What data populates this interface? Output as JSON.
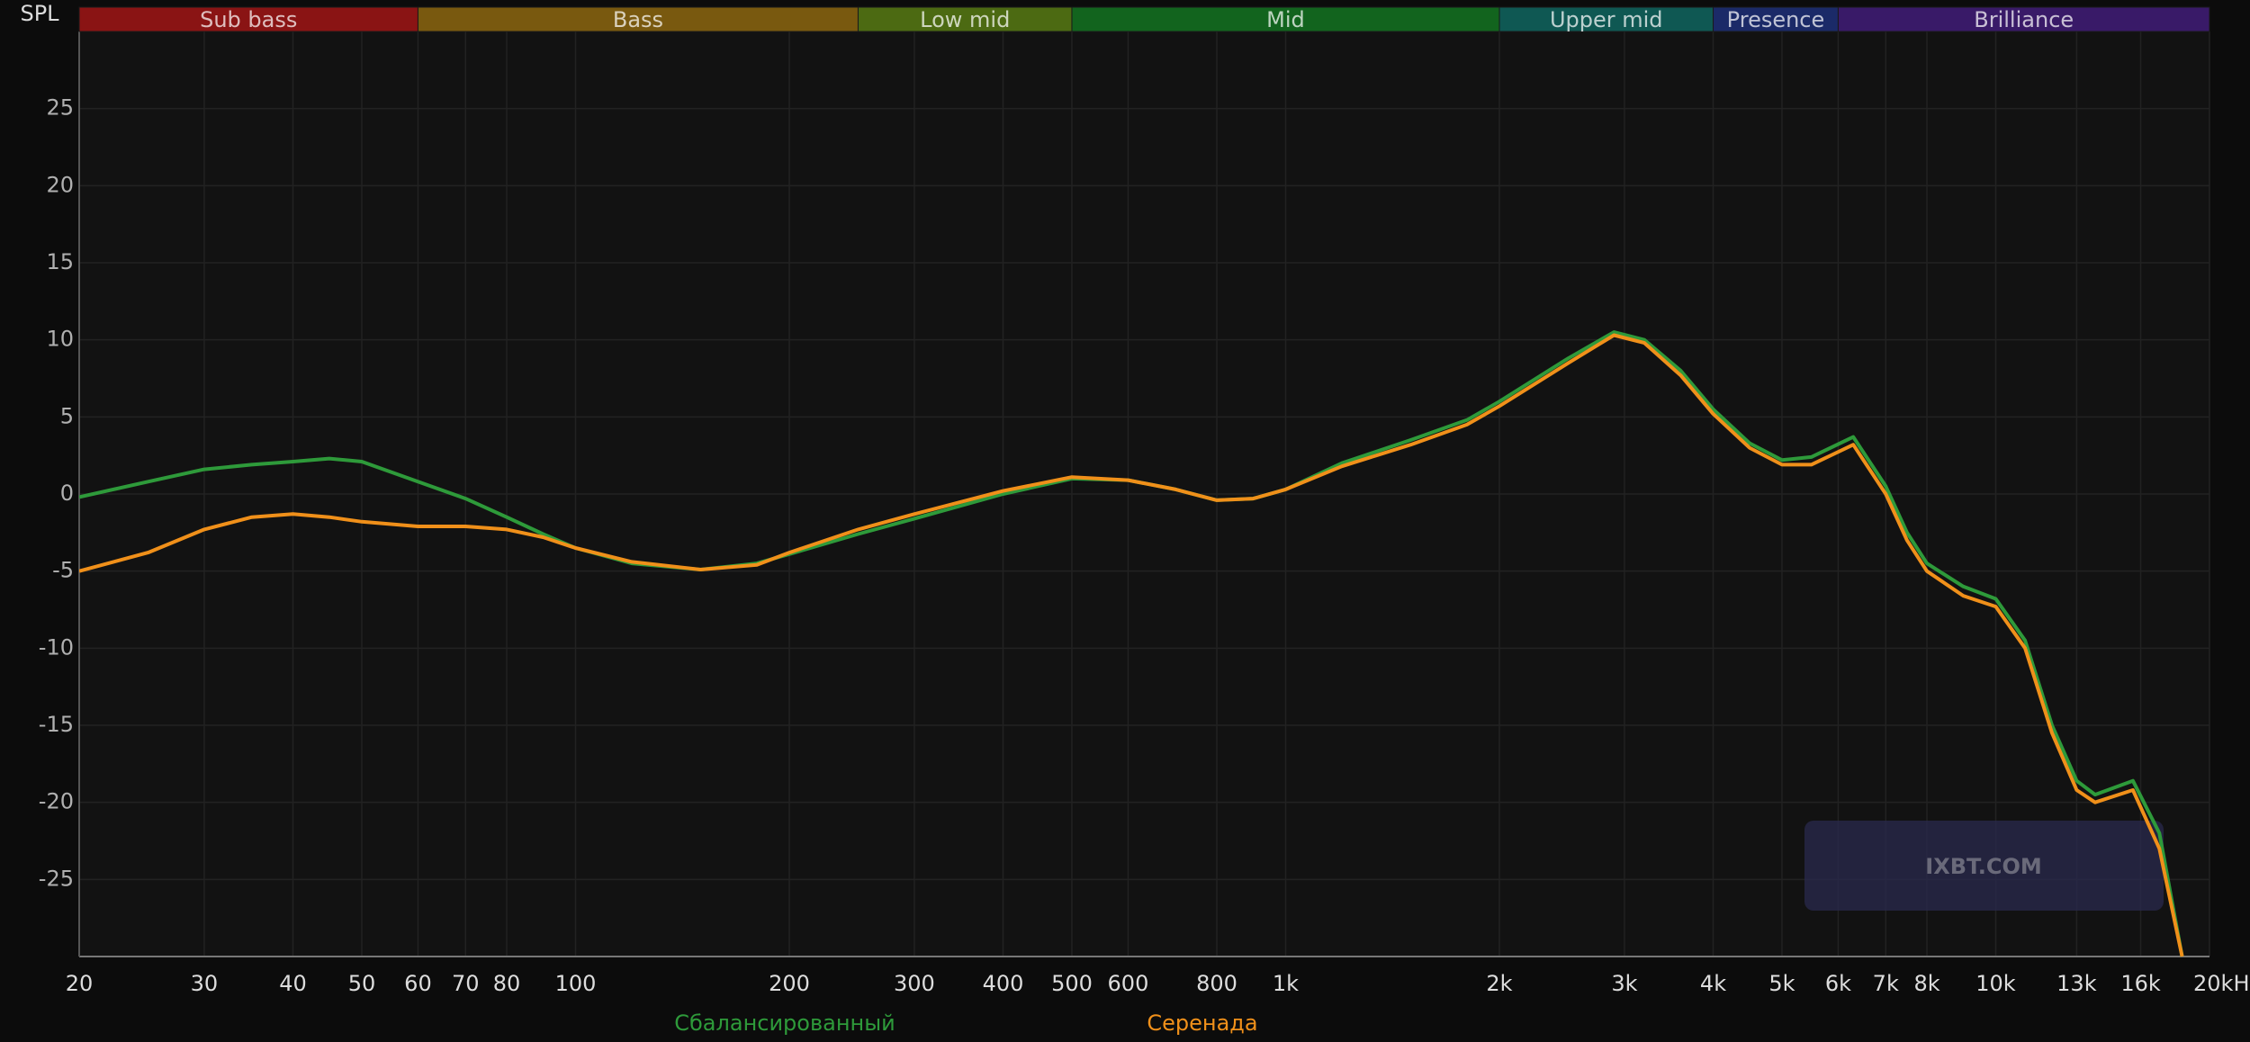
{
  "chart_data": {
    "type": "line",
    "y_label": "SPL",
    "watermark": "IXBT.COM",
    "xscale": "log",
    "grid": true,
    "xlim": [
      20,
      20000
    ],
    "ylim": [
      -30,
      30
    ],
    "yticks": [
      -25,
      -20,
      -15,
      -10,
      -5,
      0,
      5,
      10,
      15,
      20,
      25
    ],
    "xticks": [
      20,
      30,
      40,
      50,
      60,
      70,
      80,
      100,
      200,
      300,
      400,
      500,
      600,
      800,
      {
        "value": 1000,
        "label": "1k"
      },
      {
        "value": 2000,
        "label": "2k"
      },
      {
        "value": 3000,
        "label": "3k"
      },
      {
        "value": 4000,
        "label": "4k"
      },
      {
        "value": 5000,
        "label": "5k"
      },
      {
        "value": 6000,
        "label": "6k"
      },
      {
        "value": 7000,
        "label": "7k"
      },
      {
        "value": 8000,
        "label": "8k"
      },
      {
        "value": 10000,
        "label": "10k"
      },
      {
        "value": 13000,
        "label": "13k"
      },
      {
        "value": 16000,
        "label": "16k"
      },
      {
        "value": 20000,
        "label": "20kHz"
      }
    ],
    "bands": [
      {
        "name": "Sub bass",
        "from": 20,
        "to": 60,
        "color": "#8a1414"
      },
      {
        "name": "Bass",
        "from": 60,
        "to": 250,
        "color": "#79590f"
      },
      {
        "name": "Low mid",
        "from": 250,
        "to": 500,
        "color": "#4c6a12"
      },
      {
        "name": "Mid",
        "from": 500,
        "to": 2000,
        "color": "#12641e"
      },
      {
        "name": "Upper mid",
        "from": 2000,
        "to": 4000,
        "color": "#0f5853"
      },
      {
        "name": "Presence",
        "from": 4000,
        "to": 6000,
        "color": "#1b2a68"
      },
      {
        "name": "Brilliance",
        "from": 6000,
        "to": 20000,
        "color": "#391a68"
      }
    ],
    "x": [
      20,
      25,
      30,
      35,
      40,
      45,
      50,
      60,
      70,
      80,
      90,
      100,
      120,
      150,
      180,
      200,
      250,
      300,
      400,
      500,
      600,
      700,
      800,
      900,
      1000,
      1200,
      1500,
      1800,
      2000,
      2500,
      2900,
      3200,
      3600,
      4000,
      4500,
      5000,
      5500,
      6300,
      7000,
      7500,
      8000,
      9000,
      10000,
      11000,
      12000,
      13000,
      13800,
      15600,
      17000,
      18300
    ],
    "series": [
      {
        "name": "Сбалансированный",
        "color": "#2e9a3a",
        "values": [
          -0.2,
          0.8,
          1.6,
          1.9,
          2.1,
          2.3,
          2.1,
          0.8,
          -0.3,
          -1.5,
          -2.6,
          -3.5,
          -4.5,
          -4.9,
          -4.5,
          -3.9,
          -2.6,
          -1.6,
          0.0,
          1.0,
          0.9,
          0.3,
          -0.4,
          -0.3,
          0.3,
          2.0,
          3.5,
          4.8,
          6.0,
          8.8,
          10.5,
          10.0,
          8.0,
          5.5,
          3.3,
          2.2,
          2.4,
          3.7,
          0.5,
          -2.5,
          -4.5,
          -6.0,
          -6.8,
          -9.5,
          -15.0,
          -18.6,
          -19.5,
          -18.6,
          -22.0,
          -30
        ]
      },
      {
        "name": "Серенада",
        "color": "#f0901a",
        "values": [
          -5.0,
          -3.8,
          -2.3,
          -1.5,
          -1.3,
          -1.5,
          -1.8,
          -2.1,
          -2.1,
          -2.3,
          -2.8,
          -3.5,
          -4.4,
          -4.9,
          -4.6,
          -3.8,
          -2.3,
          -1.3,
          0.2,
          1.1,
          0.9,
          0.3,
          -0.4,
          -0.3,
          0.3,
          1.8,
          3.2,
          4.5,
          5.7,
          8.5,
          10.3,
          9.8,
          7.7,
          5.2,
          3.0,
          1.9,
          1.9,
          3.2,
          0.0,
          -3.0,
          -5.0,
          -6.6,
          -7.3,
          -10.0,
          -15.5,
          -19.2,
          -20.0,
          -19.2,
          -23.0,
          -30
        ]
      }
    ]
  }
}
